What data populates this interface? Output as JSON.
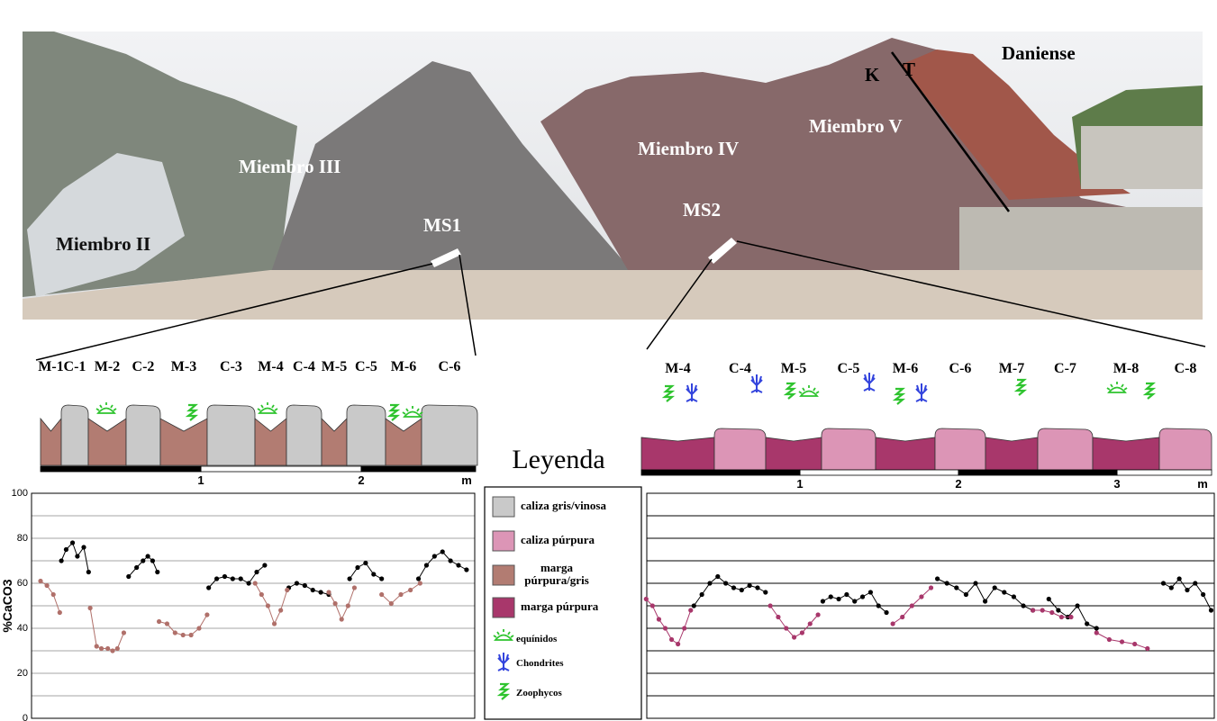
{
  "photo": {
    "labels": [
      "Miembro II",
      "Miembro III",
      "MS1",
      "Miembro IV",
      "Miembro V",
      "MS2",
      "K",
      "T",
      "Daniense"
    ]
  },
  "columns": [
    {
      "beds": [
        "M-1",
        "C-1",
        "M-2",
        "C-2",
        "M-3",
        "C-3",
        "M-4",
        "C-4",
        "M-5",
        "C-5",
        "M-6",
        "C-6"
      ],
      "scale": {
        "ticks": [
          1,
          2
        ],
        "unit": "m"
      }
    },
    {
      "beds": [
        "M-4",
        "C-4",
        "M-5",
        "C-5",
        "M-6",
        "C-6",
        "M-7",
        "C-7",
        "M-8",
        "C-8"
      ],
      "scale": {
        "ticks": [
          1,
          2,
          3
        ],
        "unit": "m"
      }
    }
  ],
  "legend": {
    "title": "Leyenda",
    "items": [
      {
        "label": "caliza gris/vinosa",
        "color": "#c9c9c9"
      },
      {
        "label": "caliza púrpura",
        "color": "#dc95b6"
      },
      {
        "label": "marga púrpura/gris",
        "color": "#b27c72"
      },
      {
        "label": "marga púrpura",
        "color": "#a8376b"
      },
      {
        "label": "equínidos",
        "color": "#2fc42f"
      },
      {
        "label": "Chondrites",
        "color": "#3344dd"
      },
      {
        "label": "Zoophycos",
        "color": "#2fc42f"
      }
    ]
  },
  "chart_data": [
    {
      "type": "line",
      "ylabel": "%CaCO3",
      "xlim": [
        0,
        2.7
      ],
      "ylim": [
        0,
        100
      ],
      "yticks": [
        0,
        20,
        40,
        60,
        80,
        100
      ],
      "ygrid": [
        0,
        10,
        20,
        30,
        40,
        50,
        60,
        70,
        80,
        90,
        100
      ],
      "series": [
        {
          "color": "#000000",
          "x": [
            0.13,
            0.16,
            0.2,
            0.23,
            0.27,
            0.3,
            0.4,
            0.55,
            0.6,
            0.64,
            0.67,
            0.7,
            0.73,
            0.9,
            1.05,
            1.1,
            1.15,
            1.2,
            1.25,
            1.3,
            1.35,
            1.4,
            1.48,
            1.55,
            1.6,
            1.65,
            1.7,
            1.75,
            1.8,
            1.86,
            1.93,
            1.98,
            2.03,
            2.08,
            2.13,
            2.25,
            2.36,
            2.41,
            2.46,
            2.51,
            2.56,
            2.61,
            2.66
          ],
          "values": [
            70,
            75,
            78,
            72,
            76,
            65,
            null,
            63,
            67,
            70,
            72,
            70,
            65,
            null,
            58,
            62,
            63,
            62,
            62,
            60,
            65,
            68,
            null,
            58,
            60,
            59,
            57,
            56,
            55,
            null,
            62,
            67,
            69,
            64,
            62,
            null,
            62,
            68,
            72,
            74,
            70,
            68,
            66
          ]
        },
        {
          "color": "#b0706a",
          "x": [
            0,
            0.04,
            0.08,
            0.12,
            0.2,
            0.31,
            0.35,
            0.38,
            0.42,
            0.45,
            0.48,
            0.52,
            0.63,
            0.74,
            0.79,
            0.84,
            0.89,
            0.94,
            0.99,
            1.04,
            1.2,
            1.34,
            1.38,
            1.42,
            1.46,
            1.5,
            1.54,
            1.67,
            1.8,
            1.84,
            1.88,
            1.92,
            1.96,
            2.05,
            2.13,
            2.19,
            2.25,
            2.31,
            2.37
          ],
          "values": [
            61,
            59,
            55,
            47,
            null,
            49,
            32,
            31,
            31,
            30,
            31,
            38,
            null,
            43,
            42,
            38,
            37,
            37,
            40,
            46,
            null,
            60,
            55,
            50,
            42,
            48,
            57,
            null,
            56,
            51,
            44,
            50,
            58,
            null,
            55,
            51,
            55,
            57,
            60
          ]
        }
      ]
    },
    {
      "type": "line",
      "xlim": [
        0,
        3.6
      ],
      "ylim": [
        0,
        100
      ],
      "ygrid": [
        0,
        10,
        20,
        30,
        40,
        50,
        60,
        70,
        80,
        90,
        100
      ],
      "series": [
        {
          "color": "#000000",
          "x": [
            0.33,
            0.38,
            0.43,
            0.48,
            0.53,
            0.58,
            0.63,
            0.68,
            0.73,
            0.78,
            0.95,
            1.14,
            1.19,
            1.24,
            1.29,
            1.34,
            1.39,
            1.44,
            1.49,
            1.54,
            1.7,
            1.86,
            1.92,
            1.98,
            2.04,
            2.1,
            2.16,
            2.22,
            2.28,
            2.34,
            2.4,
            2.46,
            2.5,
            2.56,
            2.62,
            2.68,
            2.74,
            2.8,
            2.86,
            3.1,
            3.28,
            3.33,
            3.38,
            3.43,
            3.48,
            3.53,
            3.58
          ],
          "values": [
            50,
            55,
            60,
            63,
            60,
            58,
            57,
            59,
            58,
            56,
            null,
            52,
            54,
            53,
            55,
            52,
            54,
            56,
            50,
            47,
            null,
            62,
            60,
            58,
            55,
            60,
            52,
            58,
            56,
            54,
            50,
            48,
            null,
            53,
            48,
            45,
            50,
            42,
            40,
            null,
            60,
            58,
            62,
            57,
            60,
            55,
            48
          ]
        },
        {
          "color": "#a8376b",
          "x": [
            0.03,
            0.07,
            0.11,
            0.15,
            0.19,
            0.23,
            0.27,
            0.31,
            0.55,
            0.81,
            0.86,
            0.91,
            0.96,
            1.01,
            1.06,
            1.11,
            1.35,
            1.58,
            1.64,
            1.7,
            1.76,
            1.82,
            2.1,
            2.46,
            2.52,
            2.58,
            2.64,
            2.7,
            2.78,
            2.86,
            2.94,
            3.02,
            3.1,
            3.18
          ],
          "values": [
            53,
            50,
            44,
            40,
            35,
            33,
            40,
            48,
            null,
            50,
            45,
            40,
            36,
            38,
            42,
            46,
            null,
            42,
            45,
            50,
            54,
            58,
            null,
            48,
            48,
            47,
            45,
            45,
            null,
            38,
            35,
            34,
            33,
            31
          ]
        }
      ]
    }
  ]
}
